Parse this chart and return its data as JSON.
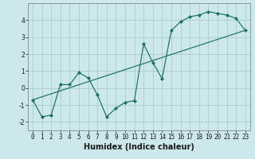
{
  "title": "",
  "xlabel": "Humidex (Indice chaleur)",
  "background_color": "#cde8ec",
  "grid_color": "#aacccc",
  "line_color": "#1a7060",
  "line1_x": [
    0,
    1,
    2,
    3,
    4,
    5,
    6,
    7,
    8,
    9,
    10,
    11,
    12,
    13,
    14,
    15,
    16,
    17,
    18,
    19,
    20,
    21,
    22,
    23
  ],
  "line1_y": [
    -0.7,
    -1.7,
    -1.6,
    0.2,
    0.2,
    0.9,
    0.6,
    -0.4,
    -1.7,
    -1.2,
    -0.85,
    -0.75,
    2.6,
    1.5,
    0.55,
    3.4,
    3.9,
    4.2,
    4.3,
    4.5,
    4.4,
    4.3,
    4.1,
    3.4
  ],
  "trend_x": [
    0,
    23
  ],
  "trend_y": [
    -0.7,
    3.4
  ],
  "xlim": [
    -0.5,
    23.5
  ],
  "ylim": [
    -2.5,
    5.0
  ],
  "yticks": [
    -2,
    -1,
    0,
    1,
    2,
    3,
    4
  ],
  "xticks": [
    0,
    1,
    2,
    3,
    4,
    5,
    6,
    7,
    8,
    9,
    10,
    11,
    12,
    13,
    14,
    15,
    16,
    17,
    18,
    19,
    20,
    21,
    22,
    23
  ],
  "tick_fontsize": 5.5,
  "label_fontsize": 7.0,
  "label_fontweight": "bold"
}
